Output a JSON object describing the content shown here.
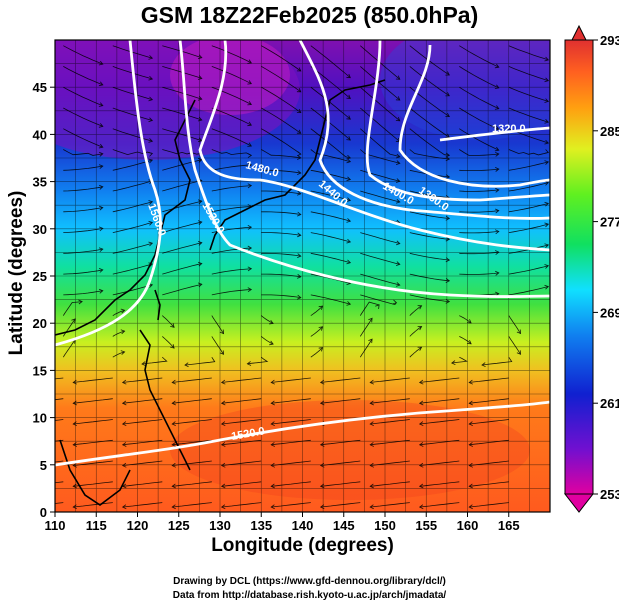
{
  "title": "GSM 18Z22Feb2025 (850.0hPa)",
  "x_axis": {
    "label": "Longitude (degrees)",
    "range": [
      110,
      170
    ],
    "ticks": [
      "110",
      "115",
      "120",
      "125",
      "130",
      "135",
      "140",
      "145",
      "150",
      "155",
      "160",
      "165"
    ]
  },
  "y_axis": {
    "label": "Latitude  (degrees)",
    "range": [
      0,
      50
    ],
    "ticks": [
      "0",
      "5",
      "10",
      "15",
      "20",
      "25",
      "30",
      "35",
      "40",
      "45"
    ]
  },
  "colorbar": {
    "min": 253,
    "max": 293,
    "ticks": [
      "293",
      "285",
      "277",
      "269",
      "261",
      "253"
    ],
    "colors": [
      "#e0007a",
      "#7a10c8",
      "#1020d0",
      "#1080f0",
      "#10e0ff",
      "#10e080",
      "#50f030",
      "#e0f020",
      "#ffa010",
      "#ff6020",
      "#e03030"
    ]
  },
  "contours": [
    {
      "label": "1560.0"
    },
    {
      "label": "1520.0"
    },
    {
      "label": "1480.0"
    },
    {
      "label": "1440.0"
    },
    {
      "label": "1400.0"
    },
    {
      "label": "1360.0"
    },
    {
      "label": "1320.0"
    },
    {
      "label": "1520.0",
      "south": true
    }
  ],
  "credits": {
    "line1": "Drawing by DCL (https://www.gfd-dennou.org/library/dcl/)",
    "line2": "Data from http://database.rish.kyoto-u.ac.jp/arch/jmadata/"
  }
}
